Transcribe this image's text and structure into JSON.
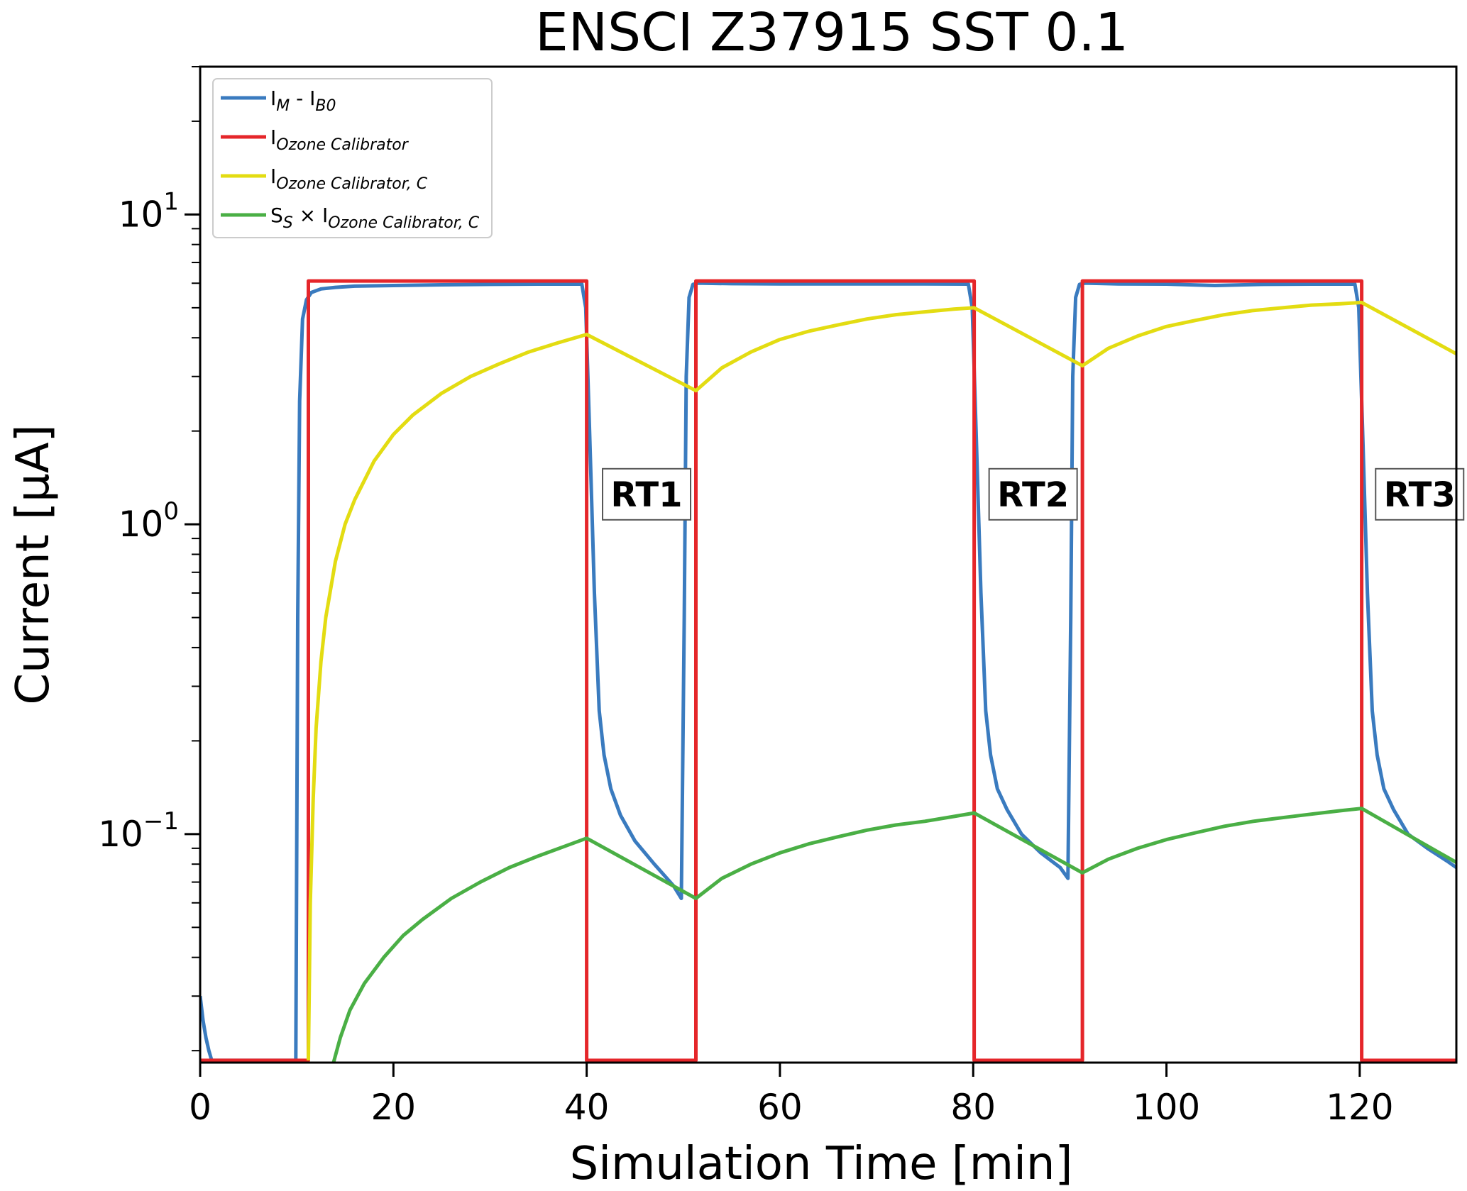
{
  "chart_data": {
    "type": "line",
    "title": "ENSCI Z37915 SST 0.1",
    "xlabel": "Simulation Time [min]",
    "ylabel": "Current [μA]",
    "xlim": [
      0,
      130
    ],
    "ylim": [
      0.0183,
      30
    ],
    "yscale": "log",
    "x_ticks": [
      0,
      20,
      40,
      60,
      80,
      100,
      120
    ],
    "x_tick_labels": [
      "0",
      "20",
      "40",
      "60",
      "80",
      "100",
      "120"
    ],
    "y_ticks": [
      0.1,
      1,
      10
    ],
    "y_tick_labels": [
      {
        "base": "10",
        "exp": "−1"
      },
      {
        "base": "10",
        "exp": "0"
      },
      {
        "base": "10",
        "exp": "1"
      }
    ],
    "grid": false,
    "legend_position": "top-left",
    "legend": [
      {
        "main": "I",
        "sub": "M",
        "mid": " - I",
        "sub2": "B0",
        "color": "#3a7bbf"
      },
      {
        "main": "I",
        "sub": "Ozone Calibrator",
        "color": "#e5262a"
      },
      {
        "main": "I",
        "sub": "Ozone Calibrator, C",
        "color": "#e3dc12"
      },
      {
        "main": "S",
        "sub": "S",
        "mid": " × I",
        "sub2": "Ozone Calibrator, C",
        "color": "#4aaf45"
      }
    ],
    "annotations": [
      {
        "text": "RT1",
        "x": 46.2,
        "y": 1.25
      },
      {
        "text": "RT2",
        "x": 86.2,
        "y": 1.25
      },
      {
        "text": "RT3",
        "x": 126.2,
        "y": 1.25
      }
    ],
    "series": [
      {
        "color": "#3a7bbf",
        "x": [
          0,
          0.3,
          0.6,
          0.9,
          1.2,
          1.5,
          2.5,
          9.9,
          10.1,
          10.3,
          10.6,
          11,
          11.5,
          12.5,
          14,
          16,
          20,
          25,
          30,
          35,
          39.5,
          39.9,
          40.3,
          40.8,
          41.3,
          41.8,
          42.5,
          43.5,
          45,
          47,
          49,
          49.8,
          50.1,
          50.3,
          50.6,
          51,
          51.5,
          52,
          55,
          60,
          65,
          70,
          75,
          79.5,
          79.9,
          80.3,
          80.8,
          81.3,
          81.8,
          82.5,
          83.5,
          85,
          87,
          89,
          89.8,
          90.1,
          90.3,
          90.6,
          91,
          91.5,
          92,
          95,
          100,
          105,
          110,
          115,
          119.5,
          119.9,
          120.3,
          120.8,
          121.3,
          121.8,
          122.5,
          123.5,
          125,
          127,
          129,
          130
        ],
        "y": [
          0.03,
          0.025,
          0.022,
          0.02,
          0.0186,
          0.0186,
          0.0186,
          0.0186,
          0.5,
          2.5,
          4.6,
          5.3,
          5.6,
          5.75,
          5.82,
          5.87,
          5.9,
          5.93,
          5.95,
          5.96,
          5.96,
          5.0,
          2.0,
          0.6,
          0.25,
          0.18,
          0.14,
          0.115,
          0.095,
          0.08,
          0.068,
          0.062,
          0.5,
          3.0,
          5.4,
          5.95,
          6.0,
          6.0,
          5.98,
          5.97,
          5.97,
          5.97,
          5.97,
          5.96,
          5.0,
          2.0,
          0.6,
          0.25,
          0.18,
          0.14,
          0.12,
          0.1,
          0.087,
          0.078,
          0.072,
          0.5,
          3.0,
          5.4,
          5.95,
          6.0,
          6.0,
          5.97,
          5.96,
          5.9,
          5.95,
          5.96,
          5.96,
          5.0,
          2.0,
          0.6,
          0.25,
          0.18,
          0.14,
          0.12,
          0.1,
          0.09,
          0.082,
          0.078
        ]
      },
      {
        "color": "#e5262a",
        "x": [
          0,
          11.2,
          11.2,
          40,
          40,
          51.3,
          51.3,
          80.1,
          80.1,
          91.3,
          91.3,
          120.2,
          120.2,
          130
        ],
        "y": [
          0.0186,
          0.0186,
          6.1,
          6.1,
          0.0186,
          0.0186,
          6.1,
          6.1,
          0.0186,
          0.0186,
          6.1,
          6.1,
          0.0186,
          0.0186
        ]
      },
      {
        "color": "#e3dc12",
        "x": [
          11.2,
          11.4,
          11.7,
          12,
          12.5,
          13,
          14,
          15,
          16,
          18,
          20,
          22,
          25,
          28,
          31,
          34,
          37,
          40,
          51.3,
          54,
          57,
          60,
          63,
          66,
          69,
          72,
          75,
          78,
          80.1,
          91.3,
          94,
          97,
          100,
          103,
          106,
          109,
          112,
          115,
          118,
          120.2,
          130
        ],
        "y": [
          0.0186,
          0.06,
          0.13,
          0.22,
          0.36,
          0.5,
          0.76,
          1.0,
          1.2,
          1.6,
          1.95,
          2.25,
          2.65,
          3.0,
          3.3,
          3.6,
          3.85,
          4.1,
          2.7,
          3.2,
          3.6,
          3.95,
          4.2,
          4.4,
          4.6,
          4.75,
          4.85,
          4.95,
          5.0,
          3.25,
          3.7,
          4.05,
          4.35,
          4.55,
          4.75,
          4.9,
          5.0,
          5.1,
          5.15,
          5.2,
          3.55
        ]
      },
      {
        "color": "#4aaf45",
        "x": [
          13.8,
          14.5,
          15.5,
          17,
          19,
          21,
          23,
          26,
          29,
          32,
          35,
          38,
          40,
          51.3,
          54,
          57,
          60,
          63,
          66,
          69,
          72,
          75,
          78,
          80.1,
          91.3,
          94,
          97,
          100,
          103,
          106,
          109,
          112,
          115,
          118,
          120.2,
          130
        ],
        "y": [
          0.0183,
          0.022,
          0.027,
          0.033,
          0.04,
          0.047,
          0.053,
          0.062,
          0.07,
          0.078,
          0.085,
          0.092,
          0.097,
          0.062,
          0.072,
          0.08,
          0.087,
          0.093,
          0.098,
          0.103,
          0.107,
          0.11,
          0.114,
          0.117,
          0.075,
          0.083,
          0.09,
          0.096,
          0.101,
          0.106,
          0.11,
          0.113,
          0.116,
          0.119,
          0.121,
          0.081
        ]
      }
    ]
  }
}
